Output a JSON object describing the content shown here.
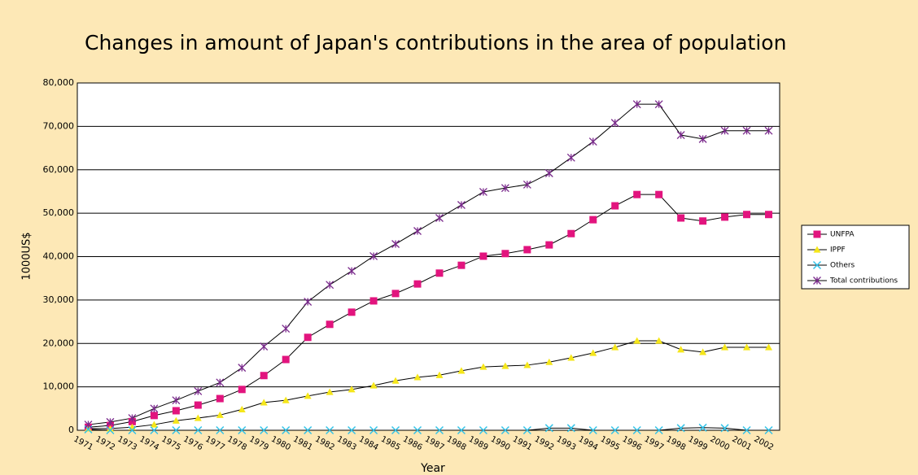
{
  "chart_data": {
    "type": "line",
    "title": "Changes in amount of Japan's contributions in the area of population",
    "x_label": "Year",
    "y_label": "1000US$",
    "categories": [
      "1971",
      "1972",
      "1973",
      "1974",
      "1975",
      "1976",
      "1977",
      "1978",
      "1979",
      "1980",
      "1981",
      "1982",
      "1983",
      "1984",
      "1985",
      "1986",
      "1987",
      "1988",
      "1989",
      "1990",
      "1991",
      "1992",
      "1993",
      "1994",
      "1995",
      "1996",
      "1997",
      "1998",
      "1999",
      "2000",
      "2001",
      "2002"
    ],
    "series": [
      {
        "name": "UNFPA",
        "color": "#e2147e",
        "marker": "square",
        "values": [
          700,
          1100,
          2000,
          3400,
          4500,
          5800,
          7300,
          9400,
          12600,
          16300,
          21400,
          24400,
          27200,
          29800,
          31500,
          33700,
          36200,
          38000,
          40100,
          40700,
          41600,
          42700,
          45300,
          48500,
          51700,
          54300,
          54300,
          48900,
          48200,
          49100,
          49700,
          49700
        ]
      },
      {
        "name": "IPPF",
        "color": "#f5e61a",
        "marker": "triangle",
        "values": [
          400,
          400,
          700,
          1300,
          2200,
          2800,
          3500,
          4800,
          6400,
          6900,
          7900,
          8800,
          9400,
          10300,
          11400,
          12200,
          12700,
          13700,
          14600,
          14800,
          15000,
          15700,
          16700,
          17800,
          19100,
          20600,
          20600,
          18600,
          18000,
          19100,
          19100,
          19100
        ]
      },
      {
        "name": "Others",
        "color": "#33c3e8",
        "marker": "x",
        "values": [
          200,
          0,
          0,
          0,
          0,
          0,
          0,
          0,
          0,
          0,
          0,
          0,
          0,
          0,
          0,
          0,
          0,
          0,
          0,
          0,
          0,
          500,
          500,
          0,
          0,
          0,
          0,
          500,
          600,
          500,
          0,
          0
        ]
      },
      {
        "name": "Total contributions",
        "color": "#7a2a8c",
        "marker": "asterisk",
        "values": [
          1300,
          1900,
          2800,
          5000,
          6900,
          9000,
          11000,
          14400,
          19300,
          23400,
          29600,
          33500,
          36700,
          40100,
          42900,
          45900,
          48900,
          51900,
          54900,
          55800,
          56600,
          59200,
          62800,
          66500,
          70800,
          75100,
          75100,
          68000,
          67100,
          69000,
          69000,
          69000
        ]
      }
    ],
    "ylim": [
      0,
      80000
    ],
    "yticks": [
      0,
      {
        "value": 10000,
        "label": "10,000"
      },
      {
        "value": 20000,
        "label": "20,000"
      },
      {
        "value": 30000,
        "label": "30,000"
      },
      {
        "value": 40000,
        "label": "40,000"
      },
      {
        "value": 50000,
        "label": "50,000"
      },
      {
        "value": 60000,
        "label": "60,000"
      },
      {
        "value": 70000,
        "label": "70,000"
      },
      {
        "value": 80000,
        "label": "80,000"
      }
    ],
    "grid": true,
    "legend": "right"
  }
}
